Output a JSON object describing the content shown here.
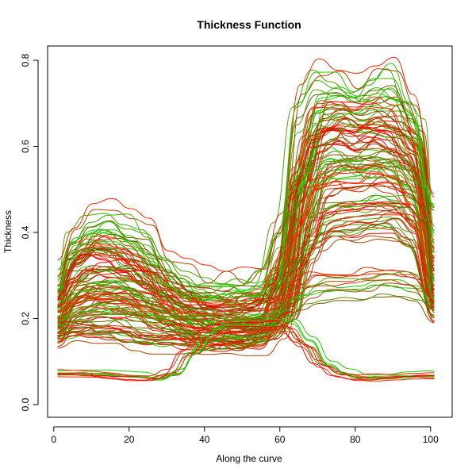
{
  "chart_data": {
    "type": "line",
    "title": "Thickness Function",
    "xlabel": "Along the curve",
    "ylabel": "Thickness",
    "xlim": [
      1,
      101
    ],
    "ylim": [
      0,
      0.8
    ],
    "xticks": [
      0,
      20,
      40,
      60,
      80,
      100
    ],
    "yticks": [
      0.0,
      0.2,
      0.4,
      0.6,
      0.8
    ],
    "xtick_labels": [
      "0",
      "20",
      "40",
      "60",
      "80",
      "100"
    ],
    "ytick_labels": [
      "0.0",
      "0.2",
      "0.4",
      "0.6",
      "0.8"
    ],
    "grid": false,
    "legend": "none",
    "colors": [
      "#ff0000",
      "#ff2200",
      "#dd3300",
      "#aa4400",
      "#775500",
      "#558800",
      "#44aa00",
      "#22cc00"
    ],
    "x": [
      1,
      6,
      11,
      16,
      21,
      26,
      31,
      36,
      41,
      46,
      51,
      56,
      61,
      66,
      71,
      76,
      81,
      86,
      91,
      96,
      101
    ],
    "series_groups": [
      {
        "count": 26,
        "spread": 0.03,
        "shape": [
          0.25,
          0.33,
          0.36,
          0.35,
          0.33,
          0.3,
          0.26,
          0.24,
          0.23,
          0.23,
          0.23,
          0.24,
          0.3,
          0.52,
          0.65,
          0.66,
          0.65,
          0.66,
          0.65,
          0.6,
          0.35
        ]
      },
      {
        "count": 24,
        "spread": 0.03,
        "shape": [
          0.22,
          0.28,
          0.3,
          0.3,
          0.29,
          0.27,
          0.24,
          0.21,
          0.19,
          0.18,
          0.18,
          0.19,
          0.26,
          0.48,
          0.58,
          0.6,
          0.58,
          0.59,
          0.58,
          0.54,
          0.3
        ]
      },
      {
        "count": 24,
        "spread": 0.025,
        "shape": [
          0.18,
          0.23,
          0.25,
          0.25,
          0.24,
          0.22,
          0.2,
          0.18,
          0.17,
          0.17,
          0.17,
          0.18,
          0.23,
          0.4,
          0.5,
          0.52,
          0.52,
          0.53,
          0.52,
          0.47,
          0.26
        ]
      },
      {
        "count": 18,
        "spread": 0.02,
        "shape": [
          0.16,
          0.17,
          0.17,
          0.17,
          0.16,
          0.15,
          0.15,
          0.15,
          0.14,
          0.14,
          0.14,
          0.15,
          0.19,
          0.32,
          0.4,
          0.42,
          0.42,
          0.43,
          0.43,
          0.4,
          0.22
        ]
      },
      {
        "count": 12,
        "spread": 0.015,
        "shape": [
          0.19,
          0.21,
          0.22,
          0.22,
          0.21,
          0.2,
          0.19,
          0.19,
          0.19,
          0.19,
          0.19,
          0.2,
          0.22,
          0.25,
          0.27,
          0.27,
          0.27,
          0.28,
          0.28,
          0.27,
          0.22
        ]
      },
      {
        "count": 10,
        "spread": 0.008,
        "shape": [
          0.07,
          0.07,
          0.068,
          0.066,
          0.062,
          0.058,
          0.07,
          0.12,
          0.16,
          0.18,
          0.18,
          0.18,
          0.18,
          0.14,
          0.09,
          0.07,
          0.06,
          0.06,
          0.062,
          0.065,
          0.065
        ]
      },
      {
        "count": 10,
        "spread": 0.04,
        "shape": [
          0.27,
          0.36,
          0.4,
          0.42,
          0.4,
          0.37,
          0.31,
          0.28,
          0.26,
          0.26,
          0.26,
          0.27,
          0.38,
          0.66,
          0.73,
          0.72,
          0.7,
          0.72,
          0.74,
          0.66,
          0.44
        ]
      }
    ]
  }
}
